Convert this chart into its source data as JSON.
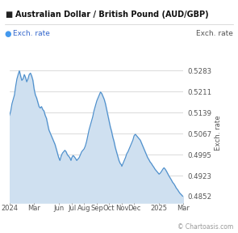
{
  "title": "Australian Dollar / British Pound (AUD/GBP)",
  "legend_label": "Exch. rate",
  "right_ylabel": "Exch. rate",
  "yticks": [
    0.4852,
    0.4923,
    0.4995,
    0.5067,
    0.5139,
    0.5211,
    0.5283
  ],
  "ylim": [
    0.483,
    0.531
  ],
  "line_color": "#4d8fcc",
  "fill_color": "#cfe0f0",
  "legend_dot_color": "#4499ee",
  "background_color": "#ffffff",
  "watermark": "© Chartoasis.com",
  "x_tick_labels": [
    "2024",
    "Mar",
    "Jun",
    "Jul",
    "Aug",
    "Sep",
    "Oct",
    "Nov",
    "Dec",
    "2025",
    "Mar"
  ],
  "x_tick_positions": [
    0,
    59,
    121,
    152,
    182,
    213,
    243,
    274,
    304,
    365,
    424
  ],
  "total_days": 424,
  "data": [
    [
      0,
      0.513
    ],
    [
      3,
      0.5145
    ],
    [
      6,
      0.517
    ],
    [
      9,
      0.5185
    ],
    [
      12,
      0.52
    ],
    [
      15,
      0.523
    ],
    [
      18,
      0.5255
    ],
    [
      21,
      0.527
    ],
    [
      24,
      0.5283
    ],
    [
      27,
      0.5265
    ],
    [
      30,
      0.525
    ],
    [
      33,
      0.5255
    ],
    [
      36,
      0.527
    ],
    [
      39,
      0.526
    ],
    [
      42,
      0.5245
    ],
    [
      45,
      0.5255
    ],
    [
      48,
      0.527
    ],
    [
      51,
      0.5275
    ],
    [
      54,
      0.5265
    ],
    [
      57,
      0.525
    ],
    [
      60,
      0.522
    ],
    [
      63,
      0.52
    ],
    [
      66,
      0.519
    ],
    [
      69,
      0.5175
    ],
    [
      72,
      0.516
    ],
    [
      75,
      0.5155
    ],
    [
      78,
      0.516
    ],
    [
      81,
      0.515
    ],
    [
      84,
      0.5145
    ],
    [
      87,
      0.513
    ],
    [
      90,
      0.512
    ],
    [
      93,
      0.51
    ],
    [
      96,
      0.508
    ],
    [
      99,
      0.507
    ],
    [
      102,
      0.506
    ],
    [
      105,
      0.505
    ],
    [
      108,
      0.504
    ],
    [
      111,
      0.503
    ],
    [
      114,
      0.5015
    ],
    [
      117,
      0.5
    ],
    [
      120,
      0.4985
    ],
    [
      123,
      0.4975
    ],
    [
      126,
      0.499
    ],
    [
      129,
      0.5
    ],
    [
      132,
      0.5005
    ],
    [
      135,
      0.501
    ],
    [
      138,
      0.5005
    ],
    [
      141,
      0.4995
    ],
    [
      144,
      0.499
    ],
    [
      147,
      0.4985
    ],
    [
      150,
      0.4975
    ],
    [
      152,
      0.4985
    ],
    [
      155,
      0.4992
    ],
    [
      158,
      0.4988
    ],
    [
      161,
      0.4982
    ],
    [
      164,
      0.4975
    ],
    [
      167,
      0.498
    ],
    [
      170,
      0.4985
    ],
    [
      173,
      0.4995
    ],
    [
      176,
      0.5005
    ],
    [
      179,
      0.501
    ],
    [
      182,
      0.5015
    ],
    [
      185,
      0.5025
    ],
    [
      188,
      0.504
    ],
    [
      191,
      0.506
    ],
    [
      194,
      0.508
    ],
    [
      197,
      0.5095
    ],
    [
      200,
      0.511
    ],
    [
      203,
      0.5125
    ],
    [
      206,
      0.5145
    ],
    [
      209,
      0.516
    ],
    [
      212,
      0.5175
    ],
    [
      213,
      0.518
    ],
    [
      216,
      0.519
    ],
    [
      219,
      0.52
    ],
    [
      222,
      0.521
    ],
    [
      225,
      0.5205
    ],
    [
      228,
      0.5195
    ],
    [
      231,
      0.5185
    ],
    [
      234,
      0.517
    ],
    [
      237,
      0.515
    ],
    [
      240,
      0.513
    ],
    [
      243,
      0.511
    ],
    [
      246,
      0.509
    ],
    [
      249,
      0.5075
    ],
    [
      252,
      0.5055
    ],
    [
      255,
      0.504
    ],
    [
      258,
      0.502
    ],
    [
      261,
      0.5005
    ],
    [
      264,
      0.499
    ],
    [
      267,
      0.4975
    ],
    [
      270,
      0.4965
    ],
    [
      273,
      0.496
    ],
    [
      274,
      0.4955
    ],
    [
      277,
      0.4965
    ],
    [
      280,
      0.4975
    ],
    [
      283,
      0.4985
    ],
    [
      286,
      0.4998
    ],
    [
      289,
      0.5005
    ],
    [
      292,
      0.5015
    ],
    [
      295,
      0.5025
    ],
    [
      298,
      0.5035
    ],
    [
      301,
      0.5045
    ],
    [
      304,
      0.506
    ],
    [
      307,
      0.5065
    ],
    [
      310,
      0.506
    ],
    [
      313,
      0.5055
    ],
    [
      316,
      0.505
    ],
    [
      319,
      0.5045
    ],
    [
      322,
      0.5035
    ],
    [
      325,
      0.5025
    ],
    [
      328,
      0.5015
    ],
    [
      331,
      0.5005
    ],
    [
      334,
      0.4995
    ],
    [
      337,
      0.4985
    ],
    [
      340,
      0.4978
    ],
    [
      343,
      0.497
    ],
    [
      346,
      0.4965
    ],
    [
      349,
      0.4958
    ],
    [
      352,
      0.4952
    ],
    [
      355,
      0.4945
    ],
    [
      358,
      0.494
    ],
    [
      361,
      0.4935
    ],
    [
      364,
      0.493
    ],
    [
      365,
      0.4928
    ],
    [
      368,
      0.4932
    ],
    [
      371,
      0.4938
    ],
    [
      374,
      0.4945
    ],
    [
      377,
      0.495
    ],
    [
      380,
      0.4945
    ],
    [
      383,
      0.4938
    ],
    [
      386,
      0.493
    ],
    [
      389,
      0.4922
    ],
    [
      392,
      0.4915
    ],
    [
      395,
      0.4908
    ],
    [
      398,
      0.49
    ],
    [
      401,
      0.4895
    ],
    [
      404,
      0.4888
    ],
    [
      407,
      0.488
    ],
    [
      410,
      0.4875
    ],
    [
      413,
      0.4868
    ],
    [
      416,
      0.4862
    ],
    [
      419,
      0.4858
    ],
    [
      422,
      0.4853
    ],
    [
      424,
      0.4852
    ]
  ]
}
